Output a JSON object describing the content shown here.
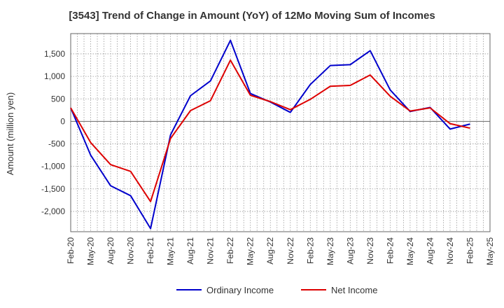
{
  "chart_data": {
    "type": "line",
    "title": "[3543]  Trend of Change in Amount (YoY) of 12Mo Moving Sum of Incomes",
    "xlabel": "",
    "ylabel": "Amount (million yen)",
    "ylim": [
      -2450,
      1950
    ],
    "yticks": [
      1500,
      1000,
      500,
      0,
      -500,
      -1000,
      -1500,
      -2000
    ],
    "ytick_labels": [
      "1,500",
      "1,000",
      "500",
      "0",
      "-500",
      "-1,000",
      "-1,500",
      "-2,000"
    ],
    "grid": true,
    "legend_position": "bottom-center",
    "categories": [
      "Feb-20",
      "May-20",
      "Aug-20",
      "Nov-20",
      "Feb-21",
      "May-21",
      "Aug-21",
      "Nov-21",
      "Feb-22",
      "May-22",
      "Aug-22",
      "Nov-22",
      "Feb-23",
      "May-23",
      "Aug-23",
      "Nov-23",
      "Feb-24",
      "May-24",
      "Aug-24",
      "Nov-24",
      "Feb-25",
      "May-25"
    ],
    "series": [
      {
        "name": "Ordinary Income",
        "color": "#0000cc",
        "values": [
          300,
          -750,
          -1430,
          -1650,
          -2380,
          -300,
          570,
          900,
          1800,
          620,
          430,
          200,
          820,
          1240,
          1260,
          1570,
          700,
          220,
          310,
          -170,
          -60,
          null
        ]
      },
      {
        "name": "Net Income",
        "color": "#dd0000",
        "values": [
          300,
          -470,
          -960,
          -1110,
          -1780,
          -380,
          240,
          460,
          1360,
          580,
          440,
          260,
          490,
          780,
          800,
          1030,
          560,
          230,
          300,
          -50,
          -150,
          null
        ]
      }
    ]
  }
}
